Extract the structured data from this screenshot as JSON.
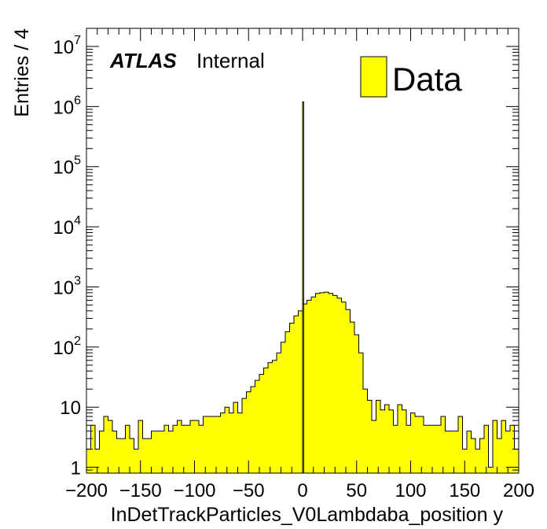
{
  "chart_data": {
    "type": "bar",
    "style": "histogram",
    "xlabel": "InDetTrackParticles_V0Lambdaba_position y",
    "ylabel": "Entries / 4",
    "xlim": [
      -200,
      200
    ],
    "ylim": [
      0.8,
      20000000
    ],
    "yscale": "log",
    "bin_width": 4,
    "fill_color": "#ffff00",
    "outline_color": "#000000",
    "label": {
      "experiment": "ATLAS",
      "status": "Internal"
    },
    "legend": {
      "entries": [
        "Data"
      ],
      "placement": "top-right"
    },
    "x_ticks": [
      "−200",
      "−150",
      "−100",
      "−50",
      "0",
      "50",
      "100",
      "150",
      "200"
    ],
    "x_tick_values": [
      -200,
      -150,
      -100,
      -50,
      0,
      50,
      100,
      150,
      200
    ],
    "y_tick_labels": [
      {
        "value": 1,
        "base": "1",
        "exp": ""
      },
      {
        "value": 10,
        "base": "10",
        "exp": ""
      },
      {
        "value": 100,
        "base": "10",
        "exp": "2"
      },
      {
        "value": 1000,
        "base": "10",
        "exp": "3"
      },
      {
        "value": 10000,
        "base": "10",
        "exp": "4"
      },
      {
        "value": 100000,
        "base": "10",
        "exp": "5"
      },
      {
        "value": 1000000,
        "base": "10",
        "exp": "6"
      },
      {
        "value": 10000000,
        "base": "10",
        "exp": "7"
      }
    ],
    "bin_low_edges": [
      -200,
      -196,
      -192,
      -188,
      -184,
      -180,
      -176,
      -172,
      -168,
      -164,
      -160,
      -156,
      -152,
      -148,
      -144,
      -140,
      -136,
      -132,
      -128,
      -124,
      -120,
      -116,
      -112,
      -108,
      -104,
      -100,
      -96,
      -92,
      -88,
      -84,
      -80,
      -76,
      -72,
      -68,
      -64,
      -60,
      -56,
      -52,
      -48,
      -44,
      -40,
      -36,
      -32,
      -28,
      -24,
      -20,
      -16,
      -12,
      -8,
      -4,
      0,
      4,
      8,
      12,
      16,
      20,
      24,
      28,
      32,
      36,
      40,
      44,
      48,
      52,
      56,
      60,
      64,
      68,
      72,
      76,
      80,
      84,
      88,
      92,
      96,
      100,
      104,
      108,
      112,
      116,
      120,
      124,
      128,
      132,
      136,
      140,
      144,
      148,
      152,
      156,
      160,
      164,
      168,
      172,
      176,
      180,
      184,
      188,
      192,
      196
    ],
    "values": [
      2,
      5,
      2,
      4,
      7,
      6,
      4,
      3,
      3,
      5,
      3,
      2,
      6,
      3,
      3,
      4,
      4,
      4,
      5,
      4,
      5,
      6,
      5,
      5,
      6,
      6,
      5,
      7,
      7,
      7,
      7,
      8,
      10,
      8,
      12,
      8,
      14,
      18,
      22,
      28,
      35,
      45,
      55,
      60,
      80,
      120,
      180,
      250,
      330,
      400,
      520,
      600,
      680,
      780,
      800,
      820,
      780,
      720,
      650,
      560,
      420,
      260,
      160,
      80,
      20,
      13,
      6,
      13,
      9,
      11,
      9,
      5,
      11,
      9,
      5,
      8,
      7,
      7,
      5,
      5,
      5,
      5,
      7,
      4,
      4,
      4,
      7,
      2,
      4,
      3,
      2,
      3,
      5,
      1,
      6,
      3,
      6,
      4,
      5,
      2
    ],
    "spike": {
      "x_low": 0,
      "x_high": 1,
      "value": 1200000
    }
  }
}
